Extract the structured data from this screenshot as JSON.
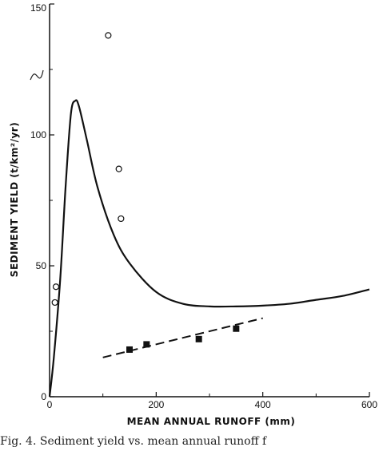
{
  "chart_data": {
    "type": "scatter",
    "xlabel": "MEAN ANNUAL RUNOFF (mm)",
    "ylabel": "SEDIMENT YIELD (t/km²/yr)",
    "xlim": [
      0,
      600
    ],
    "ylim": [
      0,
      150
    ],
    "xticks": [
      0,
      200,
      400,
      600
    ],
    "yticks": [
      0,
      50,
      100,
      150
    ],
    "grid": false,
    "series": [
      {
        "type": "scatter",
        "marker": "open-circle",
        "points": [
          [
            10,
            36
          ],
          [
            12,
            42
          ],
          [
            110,
            138
          ],
          [
            130,
            87
          ],
          [
            134,
            68
          ]
        ]
      },
      {
        "type": "scatter",
        "marker": "filled-square",
        "points": [
          [
            150,
            18
          ],
          [
            182,
            20
          ],
          [
            280,
            22
          ],
          [
            350,
            26
          ]
        ]
      },
      {
        "type": "line",
        "style": "solid",
        "points": [
          [
            0,
            0
          ],
          [
            8,
            15
          ],
          [
            20,
            45
          ],
          [
            30,
            80
          ],
          [
            40,
            108
          ],
          [
            48,
            113
          ],
          [
            55,
            111
          ],
          [
            70,
            98
          ],
          [
            90,
            80
          ],
          [
            120,
            62
          ],
          [
            150,
            51
          ],
          [
            200,
            40
          ],
          [
            250,
            35.5
          ],
          [
            300,
            34.5
          ],
          [
            350,
            34.5
          ],
          [
            400,
            34.8
          ],
          [
            450,
            35.5
          ],
          [
            500,
            37
          ],
          [
            550,
            38.5
          ],
          [
            600,
            41
          ]
        ]
      },
      {
        "type": "line",
        "style": "dashed",
        "points": [
          [
            100,
            15
          ],
          [
            400,
            30
          ]
        ]
      }
    ]
  },
  "caption": "Fig. 4. Sediment yield vs. mean annual runoff f"
}
